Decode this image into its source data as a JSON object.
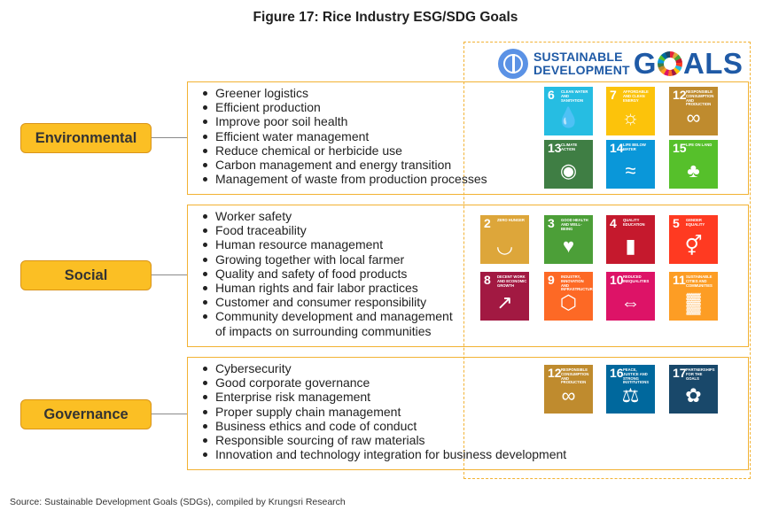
{
  "title": "Figure 17: Rice Industry ESG/SDG Goals",
  "logo": {
    "line1": "SUSTAINABLE",
    "line2": "DEVELOPMENT",
    "word_start": "G",
    "word_end": "ALS"
  },
  "sections": {
    "environmental": {
      "label": "Environmental",
      "bullets": [
        "Greener logistics",
        "Efficient production",
        "Improve poor soil health",
        "Efficient water management",
        "Reduce chemical or herbicide use",
        "Carbon management and energy transition",
        "Management of waste from production processes"
      ]
    },
    "social": {
      "label": "Social",
      "bullets": [
        "Worker safety",
        "Food traceability",
        "Human resource management",
        "Growing together with local farmer",
        "Quality and safety of food products",
        "Human rights and fair labor practices",
        "Customer and consumer responsibility",
        "Community development and management"
      ],
      "continuation": "of impacts on surrounding communities"
    },
    "governance": {
      "label": "Governance",
      "bullets": [
        "Cybersecurity",
        "Good corporate governance",
        "Enterprise risk management",
        "Proper supply chain management",
        "Business ethics and code of conduct",
        "Responsible sourcing of raw materials",
        "Innovation and technology integration for business development"
      ]
    }
  },
  "tiles": {
    "t6": {
      "num": "6",
      "title": "Clean water and sanitation",
      "color": "#26bde2",
      "icon": "water-drop-icon"
    },
    "t7": {
      "num": "7",
      "title": "Affordable and clean energy",
      "color": "#fcc30b",
      "icon": "sun-power-icon"
    },
    "t12": {
      "num": "12",
      "title": "Responsible consumption and production",
      "color": "#bf8b2e",
      "icon": "infinity-icon"
    },
    "t13": {
      "num": "13",
      "title": "Climate action",
      "color": "#3f7e44",
      "icon": "eye-globe-icon"
    },
    "t14": {
      "num": "14",
      "title": "Life below water",
      "color": "#0a97d9",
      "icon": "fish-icon"
    },
    "t15": {
      "num": "15",
      "title": "Life on land",
      "color": "#56c02b",
      "icon": "tree-icon"
    },
    "t2": {
      "num": "2",
      "title": "Zero hunger",
      "color": "#dda63a",
      "icon": "bowl-icon"
    },
    "t3": {
      "num": "3",
      "title": "Good health and well-being",
      "color": "#4c9f38",
      "icon": "heartbeat-icon"
    },
    "t4": {
      "num": "4",
      "title": "Quality education",
      "color": "#c5192d",
      "icon": "book-icon"
    },
    "t5": {
      "num": "5",
      "title": "Gender equality",
      "color": "#ff3a21",
      "icon": "gender-icon"
    },
    "t8": {
      "num": "8",
      "title": "Decent work and economic growth",
      "color": "#a21942",
      "icon": "growth-chart-icon"
    },
    "t9": {
      "num": "9",
      "title": "Industry, innovation and infrastructure",
      "color": "#fd6925",
      "icon": "cubes-icon"
    },
    "t10": {
      "num": "10",
      "title": "Reduced inequalities",
      "color": "#dd1367",
      "icon": "equality-arrows-icon"
    },
    "t11": {
      "num": "11",
      "title": "Sustainable cities and communities",
      "color": "#fd9d24",
      "icon": "city-icon"
    },
    "t12b": {
      "num": "12",
      "title": "Responsible consumption and production",
      "color": "#bf8b2e",
      "icon": "infinity-icon"
    },
    "t16": {
      "num": "16",
      "title": "Peace, justice and strong institutions",
      "color": "#00689d",
      "icon": "dove-gavel-icon"
    },
    "t17": {
      "num": "17",
      "title": "Partnerships for the goals",
      "color": "#19486a",
      "icon": "rings-icon"
    }
  },
  "source": "Source: Sustainable Development Goals (SDGs), compiled by Krungsri Research"
}
